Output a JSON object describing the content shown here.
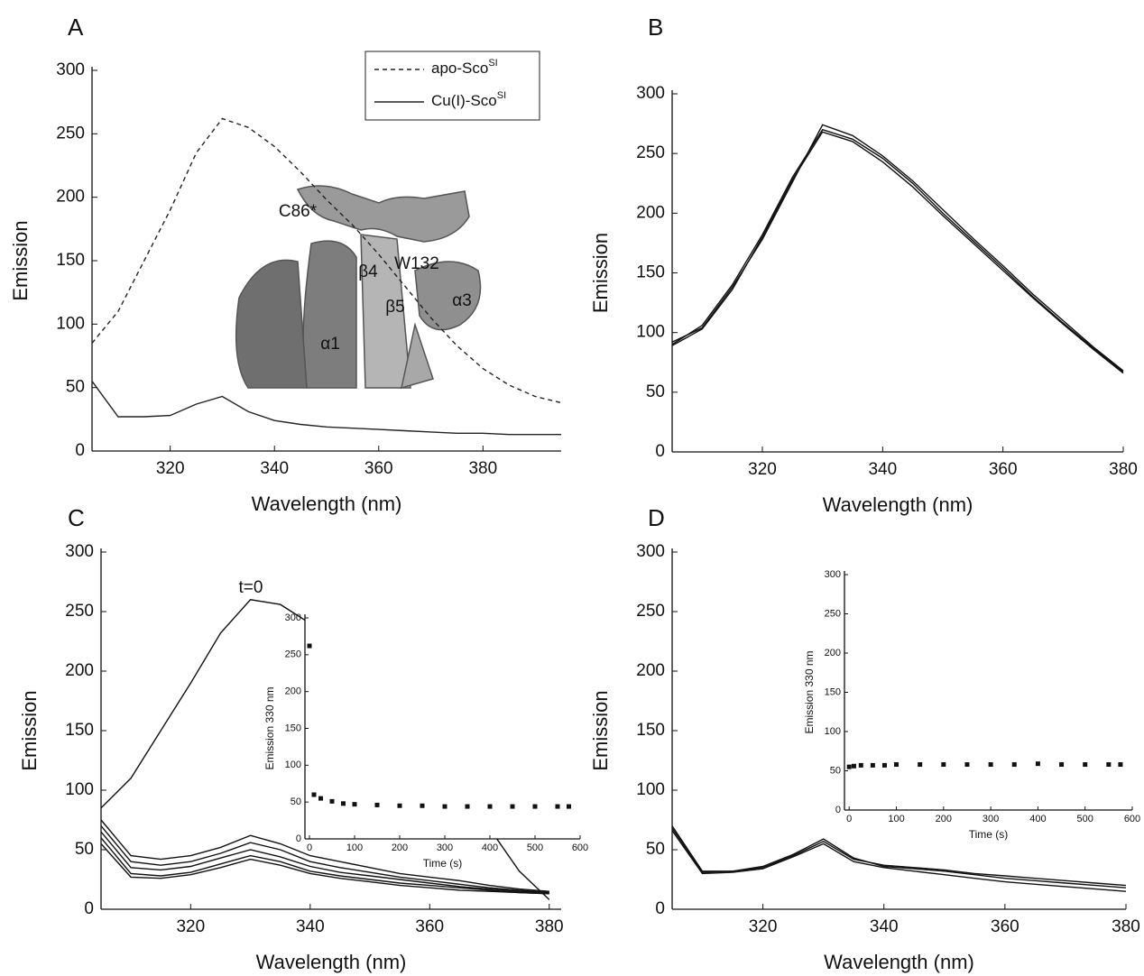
{
  "chart_data": [
    {
      "type": "line",
      "title": "A",
      "x_label": "Wavelength (nm)",
      "y_label": "Emission",
      "xlim": [
        305,
        395
      ],
      "ylim": [
        0,
        300
      ],
      "xticks": [
        320,
        340,
        360,
        380
      ],
      "yticks": [
        0,
        50,
        100,
        150,
        200,
        250,
        300
      ],
      "x": [
        305,
        310,
        315,
        320,
        325,
        330,
        335,
        340,
        345,
        350,
        355,
        360,
        365,
        370,
        375,
        380,
        385,
        390,
        395
      ],
      "series": [
        {
          "name": "apo-Sco",
          "name_superscript": "SI",
          "color": "#222222",
          "line_style": "dashed",
          "values": [
            85,
            110,
            150,
            190,
            235,
            262,
            255,
            240,
            220,
            198,
            178,
            155,
            130,
            105,
            83,
            65,
            52,
            43,
            38
          ]
        },
        {
          "name": "Cu(I)-Sco",
          "name_superscript": "SI",
          "color": "#222222",
          "line_style": "solid",
          "values": [
            55,
            27,
            27,
            28,
            37,
            43,
            31,
            24,
            21,
            19,
            18,
            17,
            16,
            15,
            14,
            14,
            13,
            13,
            13
          ]
        }
      ],
      "legend": true,
      "annotations": [
        "C86*",
        "β4",
        "W132",
        "β5",
        "α3",
        "α1"
      ]
    },
    {
      "type": "line",
      "title": "B",
      "x_label": "Wavelength (nm)",
      "y_label": "Emission",
      "xlim": [
        305,
        380
      ],
      "ylim": [
        0,
        300
      ],
      "xticks": [
        320,
        340,
        360,
        380
      ],
      "yticks": [
        0,
        50,
        100,
        150,
        200,
        250,
        300
      ],
      "x": [
        305,
        310,
        315,
        320,
        325,
        330,
        335,
        340,
        345,
        350,
        355,
        360,
        365,
        370,
        375,
        380
      ],
      "series": [
        {
          "color": "#111111",
          "line_style": "solid",
          "values": [
            90,
            106,
            140,
            182,
            230,
            270,
            262,
            246,
            225,
            200,
            177,
            154,
            130,
            108,
            87,
            67
          ]
        },
        {
          "color": "#111111",
          "line_style": "solid",
          "values": [
            92,
            104,
            138,
            178,
            226,
            274,
            265,
            248,
            227,
            203,
            179,
            156,
            132,
            110,
            88,
            68
          ]
        },
        {
          "color": "#111111",
          "line_style": "solid",
          "values": [
            89,
            103,
            136,
            180,
            228,
            268,
            260,
            243,
            222,
            198,
            175,
            152,
            129,
            107,
            86,
            66
          ]
        }
      ]
    },
    {
      "type": "line",
      "title": "C",
      "x_label": "Wavelength (nm)",
      "y_label": "Emission",
      "xlim": [
        305,
        382
      ],
      "ylim": [
        0,
        300
      ],
      "xticks": [
        320,
        340,
        360,
        380
      ],
      "yticks": [
        0,
        50,
        100,
        150,
        200,
        250,
        300
      ],
      "x": [
        305,
        310,
        315,
        320,
        325,
        330,
        335,
        340,
        345,
        350,
        355,
        360,
        365,
        370,
        375,
        380
      ],
      "series": [
        {
          "color": "#111111",
          "line_style": "solid",
          "values": [
            85,
            110,
            150,
            190,
            232,
            260,
            256,
            240,
            222,
            200,
            178,
            150,
            105,
            68,
            32,
            8
          ]
        },
        {
          "color": "#111111",
          "line_style": "solid",
          "values": [
            75,
            45,
            42,
            45,
            52,
            62,
            55,
            45,
            40,
            35,
            30,
            27,
            24,
            20,
            17,
            15
          ]
        },
        {
          "color": "#111111",
          "line_style": "solid",
          "values": [
            70,
            40,
            37,
            40,
            47,
            56,
            50,
            40,
            35,
            31,
            27,
            24,
            21,
            18,
            16,
            14
          ]
        },
        {
          "color": "#111111",
          "line_style": "solid",
          "values": [
            65,
            35,
            33,
            36,
            43,
            50,
            44,
            36,
            31,
            28,
            25,
            22,
            19,
            17,
            15,
            14
          ]
        },
        {
          "color": "#111111",
          "line_style": "solid",
          "values": [
            60,
            30,
            28,
            31,
            38,
            45,
            40,
            32,
            28,
            25,
            22,
            20,
            18,
            16,
            14,
            13
          ]
        },
        {
          "color": "#111111",
          "line_style": "solid",
          "values": [
            55,
            27,
            26,
            29,
            35,
            42,
            37,
            30,
            26,
            23,
            20,
            18,
            16,
            15,
            14,
            13
          ]
        }
      ],
      "annotations": [
        "t=0"
      ]
    },
    {
      "type": "scatter",
      "x_label": "Time (s)",
      "y_label": "Emission 330 nm",
      "xlim": [
        -10,
        600
      ],
      "ylim": [
        0,
        300
      ],
      "xticks": [
        0,
        100,
        200,
        300,
        400,
        500,
        600
      ],
      "yticks": [
        0,
        50,
        100,
        150,
        200,
        250,
        300
      ],
      "x": [
        0,
        10,
        25,
        50,
        75,
        100,
        150,
        200,
        250,
        300,
        350,
        400,
        450,
        500,
        550,
        575
      ],
      "series": [
        {
          "color": "#111111",
          "values": [
            262,
            60,
            55,
            51,
            48,
            47,
            46,
            45,
            45,
            44,
            44,
            44,
            44,
            44,
            44,
            44
          ]
        }
      ]
    },
    {
      "type": "line",
      "title": "D",
      "x_label": "Wavelength (nm)",
      "y_label": "Emission",
      "xlim": [
        305,
        380
      ],
      "ylim": [
        0,
        300
      ],
      "xticks": [
        320,
        340,
        360,
        380
      ],
      "yticks": [
        0,
        50,
        100,
        150,
        200,
        250,
        300
      ],
      "x": [
        305,
        310,
        315,
        320,
        325,
        330,
        335,
        340,
        345,
        350,
        355,
        360,
        365,
        370,
        375,
        380
      ],
      "series": [
        {
          "color": "#111111",
          "line_style": "solid",
          "values": [
            70,
            32,
            32,
            35,
            45,
            57,
            42,
            37,
            35,
            33,
            30,
            28,
            26,
            24,
            22,
            20
          ]
        },
        {
          "color": "#111111",
          "line_style": "solid",
          "values": [
            68,
            31,
            32,
            36,
            46,
            59,
            43,
            36,
            34,
            32,
            29,
            26,
            24,
            22,
            20,
            18
          ]
        },
        {
          "color": "#111111",
          "line_style": "solid",
          "values": [
            66,
            30,
            31,
            34,
            44,
            55,
            40,
            35,
            32,
            29,
            26,
            23,
            21,
            19,
            17,
            15
          ]
        }
      ]
    },
    {
      "type": "scatter",
      "x_label": "Time (s)",
      "y_label": "Emission 330 nm",
      "xlim": [
        -10,
        600
      ],
      "ylim": [
        0,
        300
      ],
      "xticks": [
        0,
        100,
        200,
        300,
        400,
        500,
        600
      ],
      "yticks": [
        0,
        50,
        100,
        150,
        200,
        250,
        300
      ],
      "x": [
        0,
        10,
        25,
        50,
        75,
        100,
        150,
        200,
        250,
        300,
        350,
        400,
        450,
        500,
        550,
        575
      ],
      "series": [
        {
          "color": "#111111",
          "values": [
            55,
            56,
            57,
            57,
            57,
            58,
            58,
            58,
            58,
            58,
            58,
            59,
            58,
            58,
            58,
            58
          ]
        }
      ]
    }
  ]
}
